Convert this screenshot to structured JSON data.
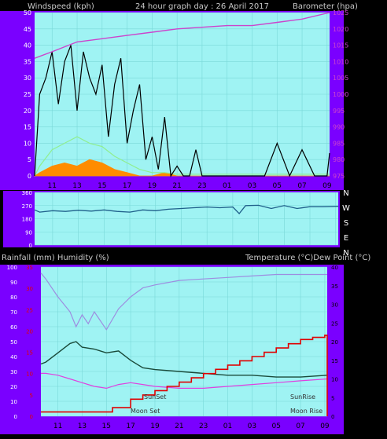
{
  "header": {
    "left": "Windspeed (kph)",
    "center": "24 hour graph day : 26 April 2017",
    "right": "Barometer (hpa)"
  },
  "colors": {
    "frame": "#7a00ff",
    "plot_bg": "#9ff3f3",
    "grid": "#7ad8d8",
    "wind_gust": "#000000",
    "wind_avg": "#90ee90",
    "wind_low": "#ff8c00",
    "barometer": "#cc44cc",
    "direction": "#1f5f8a",
    "humidity": "#9d8de0",
    "temperature": "#1a4a3a",
    "dew_point": "#e040e0",
    "rainfall": "#e00000"
  },
  "x_ticks": [
    "11",
    "13",
    "15",
    "17",
    "19",
    "21",
    "23",
    "01",
    "03",
    "05",
    "07",
    "09"
  ],
  "wind_chart": {
    "y_left_ticks": [
      "0",
      "5",
      "10",
      "15",
      "20",
      "25",
      "30",
      "35",
      "40",
      "45",
      "50"
    ],
    "y_right_ticks": [
      "975",
      "980",
      "985",
      "990",
      "995",
      "1000",
      "1005",
      "1010",
      "1015",
      "1020",
      "1025"
    ]
  },
  "dir_chart": {
    "y_ticks": [
      "0",
      "90",
      "180",
      "270",
      "360"
    ],
    "compass": [
      "N",
      "W",
      "S",
      "E",
      "N"
    ]
  },
  "bottom_labels": {
    "left": "Rainfall (mm)  Humidity (%)",
    "right": "Temperature (°C)Dew Point (°C)"
  },
  "bottom_chart": {
    "y_humidity_ticks": [
      "0",
      "10",
      "20",
      "30",
      "40",
      "50",
      "60",
      "70",
      "80",
      "90",
      "100"
    ],
    "y_rain_ticks": [
      "0",
      "5",
      "10",
      "15",
      "20",
      "25",
      "30",
      "35"
    ],
    "y_temp_ticks": [
      "0",
      "5",
      "10",
      "15",
      "20",
      "25",
      "30",
      "35",
      "40"
    ],
    "annotations": {
      "sunset": "SunSet",
      "moonset": "Moon Set",
      "sunrise": "SunRise",
      "moonrise": "Moon Rise"
    }
  },
  "chart_data": [
    {
      "type": "line",
      "title": "24 hour graph day : 26 April 2017",
      "ylabel": "Windspeed (kph)",
      "ylabel_right": "Barometer (hpa)",
      "x_ticks": [
        "11",
        "13",
        "15",
        "17",
        "19",
        "21",
        "23",
        "01",
        "03",
        "05",
        "07",
        "09"
      ],
      "ylim": [
        0,
        50
      ],
      "ylim_right": [
        975,
        1025
      ],
      "series": [
        {
          "name": "Barometer",
          "axis": "right",
          "x": [
            9.6,
            11,
            13,
            15,
            17,
            19,
            21,
            23,
            25,
            27,
            29,
            31,
            33.2
          ],
          "values": [
            1011,
            1013,
            1016,
            1017,
            1018,
            1019,
            1020,
            1020.5,
            1021,
            1021,
            1022,
            1023,
            1025
          ]
        },
        {
          "axis": "left",
          "x": [
            9.6,
            10,
            10.5,
            11,
            11.5,
            12,
            12.5,
            13,
            13.5,
            14,
            14.5,
            15,
            15.5,
            16,
            16.5,
            17,
            17.5,
            18,
            18.5,
            19,
            19.5,
            20,
            20.5,
            21,
            21.5,
            22,
            22.5,
            23,
            24,
            25,
            26,
            27,
            28,
            29,
            30,
            31,
            32,
            33,
            33.2
          ],
          "values": [
            0,
            25,
            30,
            38,
            22,
            35,
            40,
            20,
            38,
            30,
            25,
            34,
            12,
            28,
            36,
            10,
            20,
            28,
            5,
            12,
            2,
            18,
            0,
            3,
            0,
            0,
            8,
            0,
            0,
            0,
            0,
            0,
            0,
            10,
            0,
            8,
            0,
            0,
            7
          ]
        },
        {
          "axis": "left",
          "x": [
            9.6,
            10,
            11,
            12,
            13,
            14,
            15,
            16,
            17,
            18,
            19,
            20,
            21,
            22,
            23,
            25,
            27,
            29,
            31,
            33.2
          ],
          "values": [
            0,
            3,
            8,
            10,
            12,
            10,
            9,
            6,
            4,
            2,
            1,
            1,
            0.5,
            0.5,
            0.5,
            0.5,
            0.5,
            0.5,
            0.5,
            0.5
          ]
        },
        {
          "axis": "left",
          "x": [
            9.6,
            10,
            11,
            12,
            13,
            14,
            15,
            16,
            17,
            18,
            19,
            20,
            21,
            23,
            25,
            27,
            29,
            31,
            33.2
          ],
          "values": [
            0,
            1,
            3,
            4,
            3,
            5,
            4,
            2,
            1,
            0,
            0,
            1,
            0,
            0,
            0,
            0,
            0,
            0,
            0
          ]
        }
      ]
    },
    {
      "type": "line",
      "x_ticks": [
        "11",
        "13",
        "15",
        "17",
        "19",
        "21",
        "23",
        "01",
        "03",
        "05",
        "07",
        "09"
      ],
      "ylim": [
        0,
        360
      ],
      "series": [
        {
          "x": [
            9.6,
            10,
            11,
            12,
            13,
            14,
            15,
            16,
            17,
            18,
            19,
            20,
            21,
            22,
            23,
            24,
            25,
            25.5,
            26,
            27,
            28,
            29,
            30,
            31,
            32,
            33.2
          ],
          "values": [
            240,
            225,
            235,
            230,
            238,
            232,
            240,
            230,
            225,
            240,
            235,
            245,
            250,
            255,
            260,
            255,
            260,
            215,
            270,
            272,
            250,
            270,
            250,
            262,
            262,
            265
          ]
        }
      ]
    },
    {
      "type": "line",
      "x_ticks": [
        "11",
        "13",
        "15",
        "17",
        "19",
        "21",
        "23",
        "01",
        "03",
        "05",
        "07",
        "09"
      ],
      "ylim": [
        0,
        100
      ],
      "series": [
        {
          "name": "Humidity",
          "x": [
            9.6,
            10,
            11,
            12,
            12.5,
            13,
            13.5,
            14,
            15,
            15.5,
            16,
            17,
            18,
            19,
            21,
            23,
            25,
            27,
            29,
            31,
            33.2
          ],
          "values": [
            96,
            92,
            80,
            70,
            60,
            68,
            62,
            70,
            58,
            65,
            72,
            80,
            86,
            88,
            91,
            92,
            93,
            94,
            95,
            95,
            95
          ]
        },
        {
          "name": "Temperature",
          "x": [
            9.6,
            10,
            11,
            12,
            12.5,
            13,
            14,
            15,
            16,
            17,
            18,
            19,
            21,
            23,
            25,
            27,
            29,
            31,
            33.2
          ],
          "values": [
            14,
            14.5,
            17,
            19.5,
            20,
            18.5,
            18,
            17,
            17.5,
            15,
            13,
            12.5,
            12,
            11.5,
            11,
            11,
            10.5,
            10.5,
            11
          ]
        },
        {
          "name": "Dew Point",
          "x": [
            9.6,
            10,
            11,
            12,
            13,
            14,
            15,
            16,
            17,
            18,
            19,
            21,
            23,
            25,
            27,
            29,
            31,
            33.2
          ],
          "values": [
            11.5,
            11.5,
            11,
            10,
            9,
            8,
            7.5,
            8.5,
            9,
            8.5,
            8,
            7.5,
            7.5,
            8,
            8.5,
            9,
            9.5,
            10
          ]
        },
        {
          "name": "Rainfall",
          "x": [
            9.6,
            15,
            15.5,
            16,
            17,
            18,
            19,
            20,
            21,
            22,
            23,
            24,
            25,
            26,
            27,
            28,
            29,
            30,
            31,
            32,
            33,
            33.2
          ],
          "values": [
            1,
            1,
            2,
            2,
            4,
            5,
            6,
            7,
            8,
            9,
            10,
            11,
            12,
            13,
            14,
            15,
            16,
            17,
            18,
            18.5,
            19,
            0
          ]
        }
      ]
    }
  ]
}
